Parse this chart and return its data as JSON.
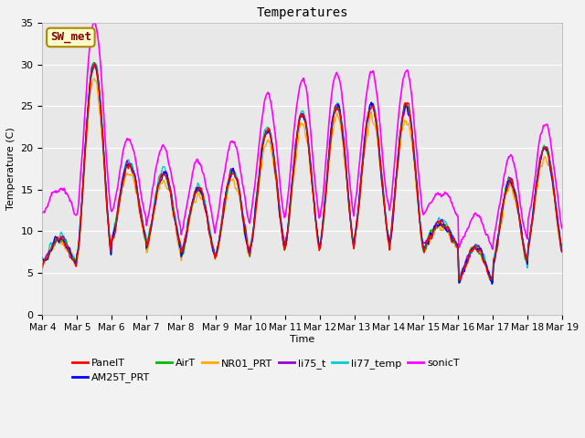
{
  "title": "Temperatures",
  "ylabel": "Temperature (C)",
  "xlabel": "Time",
  "annotation": "SW_met",
  "ylim": [
    0,
    35
  ],
  "series_colors": {
    "PanelT": "#ff0000",
    "AM25T_PRT": "#0000ff",
    "AirT": "#00bb00",
    "NR01_PRT": "#ffaa00",
    "li75_t": "#9900cc",
    "li77_temp": "#00cccc",
    "sonicT": "#ff00ff"
  },
  "xtick_labels": [
    "Mar 4",
    "Mar 5",
    "Mar 6",
    "Mar 7",
    "Mar 8",
    "Mar 9",
    "Mar 10",
    "Mar 11",
    "Mar 12",
    "Mar 13",
    "Mar 14",
    "Mar 15",
    "Mar 16",
    "Mar 17",
    "Mar 18",
    "Mar 19"
  ],
  "ytick_labels": [
    "0",
    "5",
    "10",
    "15",
    "20",
    "25",
    "30",
    "35"
  ],
  "plot_bg_color": "#e8e8e8",
  "fig_bg_color": "#f2f2f2",
  "linewidth": 1.0,
  "annotation_box_color": "#ffffcc",
  "annotation_border_color": "#aa8800",
  "annotation_text_color": "#880000",
  "n_days": 15,
  "pts_per_day": 48,
  "day_amps": [
    3,
    23,
    9,
    9,
    8,
    10,
    14,
    16,
    17,
    16,
    17,
    3,
    4,
    10,
    12
  ],
  "day_bases": [
    6,
    7,
    9,
    8,
    7,
    7,
    8,
    8,
    8,
    9,
    8,
    8,
    4,
    6,
    8
  ],
  "sonic_extra": [
    6,
    5,
    3,
    3,
    3,
    4,
    4,
    4,
    4,
    4,
    4,
    4,
    4,
    3,
    3
  ]
}
